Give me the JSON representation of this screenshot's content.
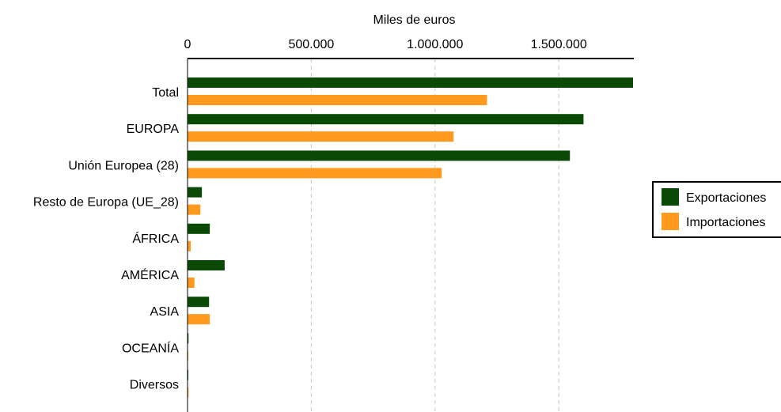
{
  "chart_data": {
    "type": "bar",
    "orientation": "horizontal",
    "xlabel": "Miles de euros",
    "xlabel_position": "top",
    "xlim": [
      0,
      1800000
    ],
    "ticks": [
      0,
      500000,
      1000000,
      1500000
    ],
    "tick_labels": [
      "0",
      "500.000",
      "1.000.000",
      "1.500.000"
    ],
    "grid": "vertical dashed",
    "categories": [
      "Total",
      "EUROPA",
      "Unión Europea (28)",
      "Resto de Europa (UE_28)",
      "ÁFRICA",
      "AMÉRICA",
      "ASIA",
      "OCEANÍA",
      "Diversos"
    ],
    "series": [
      {
        "name": "Exportaciones",
        "color": "#0b4a06",
        "values": [
          1800000,
          1600000,
          1545000,
          58000,
          90000,
          150000,
          87000,
          4000,
          2000
        ]
      },
      {
        "name": "Importaciones",
        "color": "#ff9a1e",
        "values": [
          1210000,
          1075000,
          1027000,
          52000,
          13000,
          28000,
          90000,
          3000,
          4000
        ]
      }
    ],
    "legend": {
      "placement": "right"
    }
  }
}
